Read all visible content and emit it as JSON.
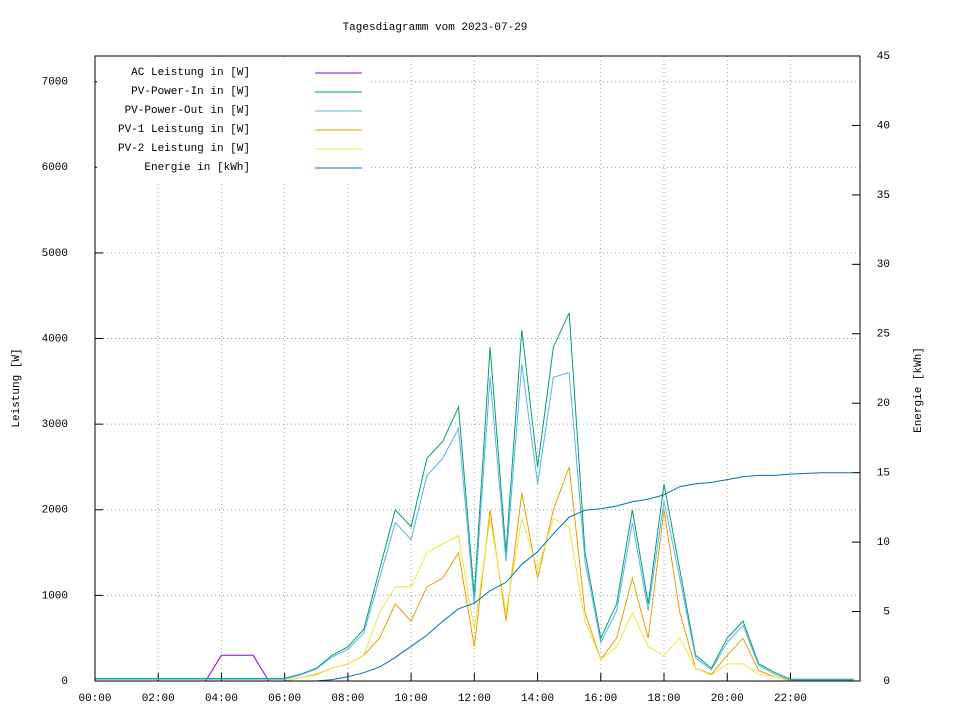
{
  "chart_data": {
    "type": "line",
    "title": "Tagesdiagramm vom 2023-07-29",
    "y_label": "Leistung [W]",
    "y2_label": "Energie [kWh]",
    "x": [
      0,
      0.5,
      1,
      1.5,
      2,
      2.5,
      3,
      3.5,
      4,
      4.5,
      5,
      5.5,
      6,
      6.5,
      7,
      7.5,
      8,
      8.5,
      9,
      9.5,
      10,
      10.5,
      11,
      11.5,
      12,
      12.5,
      13,
      13.5,
      14,
      14.5,
      15,
      15.5,
      16,
      16.5,
      17,
      17.5,
      18,
      18.5,
      19,
      19.5,
      20,
      20.5,
      21,
      21.5,
      22,
      22.5,
      23,
      23.5,
      24
    ],
    "xlim": [
      0,
      24.2
    ],
    "xticks": [
      {
        "value": 0,
        "label": "00:00"
      },
      {
        "value": 2,
        "label": "02:00"
      },
      {
        "value": 4,
        "label": "04:00"
      },
      {
        "value": 6,
        "label": "06:00"
      },
      {
        "value": 8,
        "label": "08:00"
      },
      {
        "value": 10,
        "label": "10:00"
      },
      {
        "value": 12,
        "label": "12:00"
      },
      {
        "value": 14,
        "label": "14:00"
      },
      {
        "value": 16,
        "label": "16:00"
      },
      {
        "value": 18,
        "label": "18:00"
      },
      {
        "value": 20,
        "label": "20:00"
      },
      {
        "value": 22,
        "label": "22:00"
      }
    ],
    "ylim": [
      0,
      7300
    ],
    "yticks": [
      0,
      1000,
      2000,
      3000,
      4000,
      5000,
      6000,
      7000
    ],
    "y2lim": [
      0,
      45
    ],
    "y2ticks": [
      0,
      5,
      10,
      15,
      20,
      25,
      30,
      35,
      40,
      45
    ],
    "grid": true,
    "legend": "top left",
    "series": [
      {
        "name": "AC Leistung in [W]",
        "color": "#9400d3",
        "values": [
          0,
          0,
          0,
          0,
          0,
          0,
          0,
          0,
          300,
          300,
          300,
          0,
          0,
          0,
          0,
          0,
          0,
          0,
          0,
          0,
          0,
          0,
          0,
          0,
          0,
          0,
          0,
          0,
          0,
          0,
          0,
          0,
          0,
          0,
          0,
          0,
          0,
          0,
          0,
          0,
          0,
          0,
          0,
          0,
          0,
          0,
          0,
          0,
          0
        ]
      },
      {
        "name": "PV-Power-In in [W]",
        "color": "#009e73",
        "values": [
          30,
          30,
          30,
          30,
          30,
          30,
          30,
          30,
          30,
          30,
          30,
          30,
          30,
          80,
          150,
          300,
          400,
          600,
          1300,
          2000,
          1800,
          2600,
          2800,
          3200,
          1000,
          3900,
          1500,
          4100,
          2500,
          3900,
          4300,
          1500,
          500,
          900,
          2000,
          900,
          2300,
          1300,
          300,
          150,
          500,
          700,
          200,
          100,
          20,
          20,
          20,
          20,
          20
        ]
      },
      {
        "name": "PV-Power-Out in [W]",
        "color": "#56b4e9",
        "values": [
          20,
          20,
          20,
          20,
          20,
          20,
          20,
          20,
          20,
          20,
          20,
          20,
          20,
          70,
          140,
          280,
          370,
          560,
          1200,
          1850,
          1650,
          2400,
          2600,
          2950,
          900,
          3550,
          1400,
          3700,
          2300,
          3550,
          3600,
          1400,
          450,
          820,
          1850,
          820,
          2100,
          1200,
          270,
          130,
          450,
          650,
          180,
          80,
          10,
          10,
          10,
          10,
          10
        ]
      },
      {
        "name": "PV-1 Leistung in [W]",
        "color": "#e69f00",
        "values": [
          0,
          0,
          0,
          0,
          0,
          0,
          0,
          0,
          0,
          0,
          0,
          0,
          0,
          40,
          80,
          150,
          200,
          300,
          500,
          900,
          700,
          1100,
          1200,
          1500,
          400,
          2000,
          700,
          2200,
          1200,
          2000,
          2500,
          800,
          250,
          500,
          1200,
          500,
          2000,
          800,
          150,
          80,
          300,
          500,
          120,
          50,
          0,
          0,
          0,
          0,
          0
        ]
      },
      {
        "name": "PV-2 Leistung in [W]",
        "color": "#f0e442",
        "values": [
          0,
          0,
          0,
          0,
          0,
          0,
          0,
          0,
          0,
          0,
          0,
          0,
          0,
          40,
          70,
          150,
          200,
          300,
          800,
          1100,
          1100,
          1500,
          1600,
          1700,
          600,
          1900,
          800,
          1900,
          1300,
          1900,
          1800,
          700,
          250,
          400,
          800,
          400,
          300,
          500,
          150,
          70,
          200,
          200,
          80,
          50,
          0,
          0,
          0,
          0,
          0
        ]
      },
      {
        "name": "Energie in [kWh]",
        "color": "#0072b2",
        "axis": "y2",
        "values": [
          0,
          0,
          0,
          0,
          0,
          0,
          0,
          0,
          0,
          0,
          0,
          0,
          0,
          0,
          0,
          0.1,
          0.3,
          0.6,
          1,
          1.7,
          2.5,
          3.3,
          4.3,
          5.2,
          5.6,
          6.5,
          7.1,
          8.4,
          9.3,
          10.6,
          11.8,
          12.3,
          12.4,
          12.6,
          12.9,
          13.1,
          13.4,
          14,
          14.2,
          14.3,
          14.5,
          14.7,
          14.8,
          14.8,
          14.9,
          14.95,
          15,
          15,
          15
        ]
      }
    ]
  }
}
